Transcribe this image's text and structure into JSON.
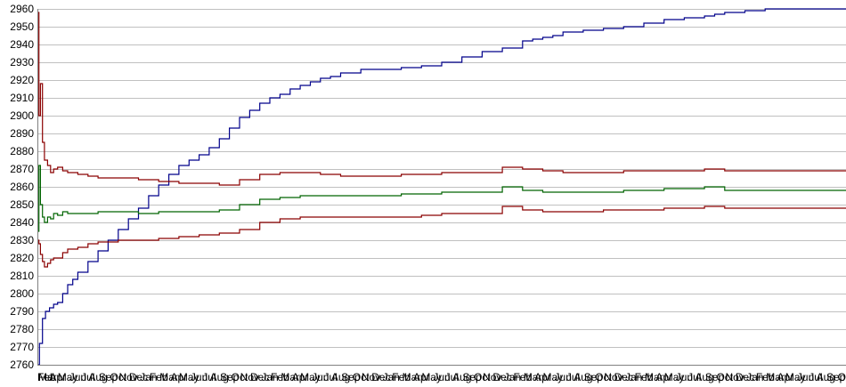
{
  "chart_data": {
    "type": "line",
    "title": "",
    "xlabel": "",
    "ylabel": "",
    "ylim": [
      2760,
      2960
    ],
    "yticks": [
      2760,
      2770,
      2780,
      2790,
      2800,
      2810,
      2820,
      2830,
      2840,
      2850,
      2860,
      2870,
      2880,
      2890,
      2900,
      2910,
      2920,
      2930,
      2940,
      2950,
      2960
    ],
    "grid": true,
    "legend": "none",
    "x_tick_labels": [
      "Feb",
      "Mar",
      "Apr",
      "May",
      "Jun",
      "Jul",
      "Aug",
      "Sep",
      "Oct",
      "Nov",
      "Dec",
      "Jan",
      "Feb",
      "Mar",
      "Apr",
      "May",
      "Jun",
      "Jul",
      "Aug",
      "Sep",
      "Oct",
      "Nov",
      "Dec",
      "Jan",
      "Feb",
      "Mar",
      "Apr",
      "May",
      "Jun",
      "Jul",
      "Aug",
      "Sep",
      "Oct",
      "Nov",
      "Dec",
      "Jan",
      "Feb",
      "Mar",
      "Apr",
      "May",
      "Jun",
      "Jul",
      "Aug",
      "Sep",
      "Oct",
      "Nov",
      "Dec",
      "Jan",
      "Feb",
      "Mar",
      "Apr",
      "May",
      "Jun",
      "Jul",
      "Aug",
      "Sep",
      "Oct",
      "Nov",
      "Dec",
      "Jan",
      "Feb",
      "Mar",
      "Apr",
      "May",
      "Jun",
      "Jul",
      "Aug",
      "Sep",
      "Oct",
      "Nov",
      "Dec",
      "Jan",
      "Feb",
      "Mar",
      "Apr",
      "May",
      "Jun",
      "Jul",
      "Aug",
      "Sep",
      "Oct"
    ],
    "x_index_range": [
      0,
      80
    ],
    "series": [
      {
        "color": "#00008b",
        "x": [
          0,
          0.2,
          0.5,
          0.8,
          1.2,
          1.6,
          2,
          2.5,
          3,
          3.5,
          4,
          5,
          6,
          7,
          8,
          9,
          10,
          11,
          12,
          13,
          14,
          15,
          16,
          17,
          18,
          19,
          20,
          21,
          22,
          23,
          24,
          25,
          26,
          27,
          28,
          29,
          30,
          32,
          34,
          36,
          38,
          40,
          42,
          44,
          46,
          48,
          49,
          50,
          51,
          52,
          54,
          56,
          58,
          60,
          62,
          64,
          66,
          67,
          68,
          69,
          70,
          72,
          74,
          76,
          78,
          80
        ],
        "values": [
          2760,
          2772,
          2786,
          2790,
          2792,
          2794,
          2795,
          2800,
          2805,
          2808,
          2812,
          2818,
          2824,
          2830,
          2836,
          2842,
          2848,
          2855,
          2861,
          2867,
          2872,
          2875,
          2878,
          2882,
          2887,
          2893,
          2899,
          2903,
          2907,
          2910,
          2912,
          2915,
          2917,
          2919,
          2921,
          2922,
          2924,
          2926,
          2926,
          2927,
          2928,
          2930,
          2933,
          2936,
          2938,
          2942,
          2943,
          2944,
          2945,
          2947,
          2948,
          2949,
          2950,
          2952,
          2954,
          2955,
          2956,
          2957,
          2958,
          2958,
          2959,
          2960,
          2960,
          2960,
          2960,
          2960
        ]
      },
      {
        "color": "#8b0000",
        "x": [
          0,
          0.15,
          0.3,
          0.5,
          0.7,
          1,
          1.3,
          1.6,
          2,
          2.5,
          3,
          4,
          5,
          6,
          8,
          10,
          12,
          14,
          16,
          18,
          20,
          22,
          24,
          26,
          28,
          30,
          32,
          34,
          36,
          38,
          40,
          42,
          44,
          46,
          48,
          50,
          52,
          54,
          56,
          58,
          60,
          62,
          64,
          66,
          68,
          70,
          72,
          74,
          76,
          78,
          80
        ],
        "values": [
          2958,
          2900,
          2918,
          2885,
          2875,
          2872,
          2868,
          2870,
          2871,
          2869,
          2868,
          2867,
          2866,
          2865,
          2865,
          2864,
          2863,
          2862,
          2862,
          2861,
          2864,
          2867,
          2868,
          2868,
          2867,
          2866,
          2866,
          2866,
          2867,
          2867,
          2868,
          2868,
          2868,
          2871,
          2870,
          2869,
          2868,
          2868,
          2868,
          2869,
          2869,
          2869,
          2869,
          2870,
          2869,
          2869,
          2869,
          2869,
          2869,
          2869,
          2869
        ]
      },
      {
        "color": "#006400",
        "x": [
          0,
          0.15,
          0.3,
          0.5,
          0.7,
          1,
          1.3,
          1.6,
          2,
          2.5,
          3,
          4,
          5,
          6,
          8,
          10,
          12,
          14,
          16,
          18,
          20,
          22,
          24,
          26,
          28,
          30,
          32,
          34,
          36,
          38,
          40,
          42,
          44,
          46,
          48,
          50,
          52,
          54,
          56,
          58,
          60,
          62,
          64,
          66,
          68,
          70,
          72,
          74,
          76,
          78,
          80
        ],
        "values": [
          2835,
          2872,
          2850,
          2843,
          2840,
          2843,
          2842,
          2845,
          2844,
          2846,
          2845,
          2845,
          2845,
          2846,
          2846,
          2845,
          2846,
          2846,
          2846,
          2847,
          2850,
          2853,
          2854,
          2855,
          2855,
          2855,
          2855,
          2855,
          2856,
          2856,
          2857,
          2857,
          2857,
          2860,
          2858,
          2857,
          2857,
          2857,
          2857,
          2858,
          2858,
          2859,
          2859,
          2860,
          2858,
          2858,
          2858,
          2858,
          2858,
          2858,
          2858
        ]
      },
      {
        "color": "#8b0000",
        "x": [
          0,
          0.15,
          0.3,
          0.5,
          0.7,
          1,
          1.3,
          1.6,
          2,
          2.5,
          3,
          4,
          5,
          6,
          8,
          10,
          12,
          14,
          16,
          18,
          20,
          22,
          24,
          26,
          28,
          30,
          32,
          34,
          36,
          38,
          40,
          42,
          44,
          46,
          48,
          50,
          52,
          54,
          56,
          58,
          60,
          62,
          64,
          66,
          68,
          70,
          72,
          74,
          76,
          78,
          80
        ],
        "values": [
          2830,
          2828,
          2822,
          2818,
          2815,
          2817,
          2819,
          2820,
          2820,
          2823,
          2825,
          2826,
          2828,
          2829,
          2830,
          2830,
          2831,
          2832,
          2833,
          2834,
          2836,
          2840,
          2842,
          2843,
          2843,
          2843,
          2843,
          2843,
          2843,
          2844,
          2845,
          2845,
          2845,
          2849,
          2847,
          2846,
          2846,
          2846,
          2847,
          2847,
          2847,
          2848,
          2848,
          2849,
          2848,
          2848,
          2848,
          2848,
          2848,
          2848,
          2848
        ]
      }
    ]
  }
}
